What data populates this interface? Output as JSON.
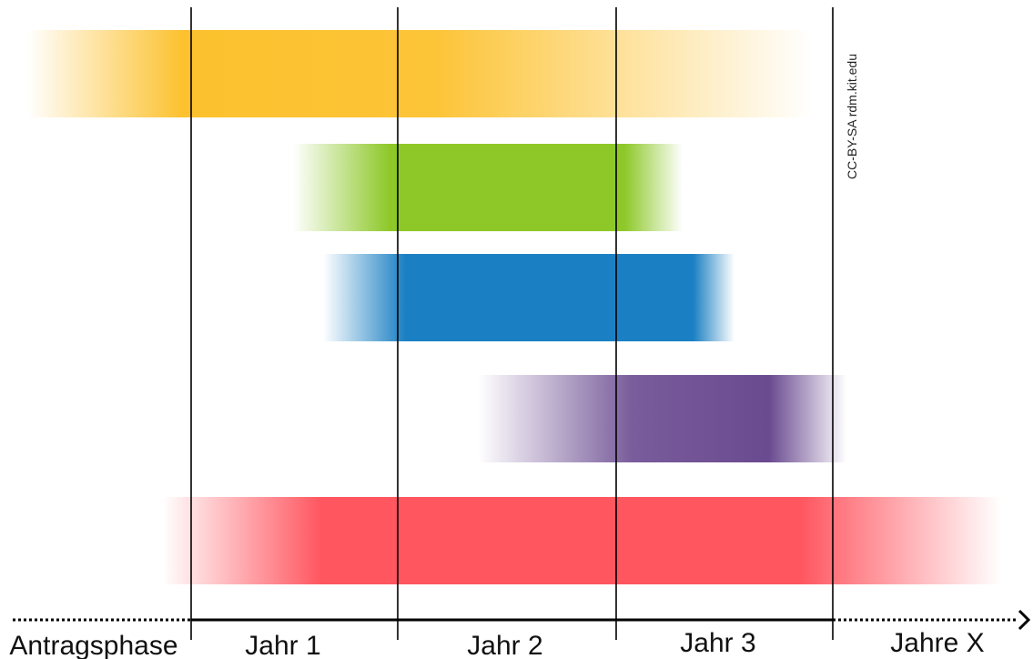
{
  "license_note": "CC-BY-SA rdm.kit.edu",
  "phases": [
    {
      "label": "Antragsphase"
    },
    {
      "label": "Jahr 1"
    },
    {
      "label": "Jahr 2"
    },
    {
      "label": "Jahr 3"
    },
    {
      "label": "Jahre X"
    }
  ],
  "bars": [
    {
      "name": "yellow-bar",
      "color": "#fcc12d"
    },
    {
      "name": "green-bar",
      "color": "#8dc828"
    },
    {
      "name": "blue-bar",
      "color": "#1b80c3"
    },
    {
      "name": "purple-bar",
      "color": "#6a4a90"
    },
    {
      "name": "red-bar",
      "color": "#ff5660"
    }
  ]
}
